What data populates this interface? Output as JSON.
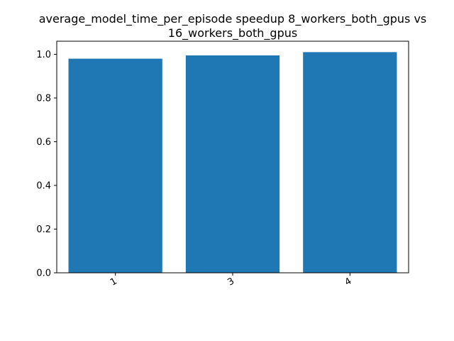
{
  "chart_data": {
    "type": "bar",
    "title_lines": [
      "average_model_time_per_episode speedup 8_workers_both_gpus vs",
      "16_workers_both_gpus"
    ],
    "categories": [
      "1",
      "3",
      "4"
    ],
    "values": [
      0.98,
      0.995,
      1.01
    ],
    "ylim": [
      0,
      1.06
    ],
    "yticks": [
      "0.0",
      "0.2",
      "0.4",
      "0.6",
      "0.8",
      "1.0"
    ],
    "xlabel": "",
    "ylabel": "",
    "bar_color": "#1f77b4",
    "grid": false,
    "legend": "none"
  }
}
